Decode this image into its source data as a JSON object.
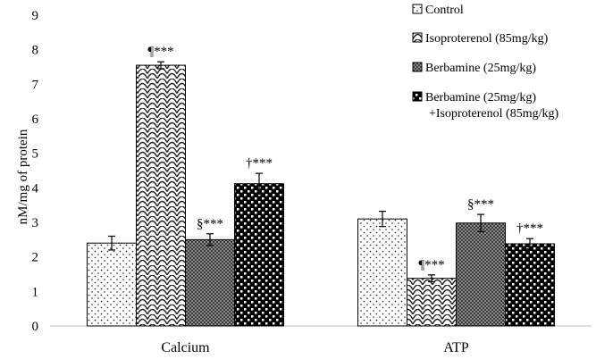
{
  "chart_data": {
    "type": "bar",
    "ylabel": "nM/mg of protein",
    "xlabel": "",
    "ylim": [
      0,
      9
    ],
    "yticks": [
      "0",
      "1",
      "2",
      "3",
      "4",
      "5",
      "6",
      "7",
      "8",
      "9"
    ],
    "categories": [
      "Calcium",
      "ATP"
    ],
    "grid": false,
    "legend_position": "top-right",
    "series": [
      {
        "name": "Control",
        "pattern": "fine-dots",
        "values": [
          2.4,
          3.1
        ],
        "errors": [
          0.2,
          0.22
        ],
        "annotations": [
          "",
          ""
        ]
      },
      {
        "name": "Isoproterenol (85mg/kg)",
        "pattern": "scales",
        "values": [
          7.55,
          1.38
        ],
        "errors": [
          0.1,
          0.1
        ],
        "annotations": [
          "¶***",
          "¶***"
        ]
      },
      {
        "name": "Berbamine (25mg/kg)",
        "pattern": "dense-grid",
        "values": [
          2.5,
          2.98
        ],
        "errors": [
          0.17,
          0.25
        ],
        "annotations": [
          "§***",
          "§***"
        ]
      },
      {
        "name": "Berbamine (25mg/kg)",
        "name_line2": "+Isoproterenol (85mg/kg)",
        "pattern": "large-checker",
        "values": [
          4.12,
          2.38
        ],
        "errors": [
          0.3,
          0.15
        ],
        "annotations": [
          "†***",
          "†***"
        ]
      }
    ]
  }
}
